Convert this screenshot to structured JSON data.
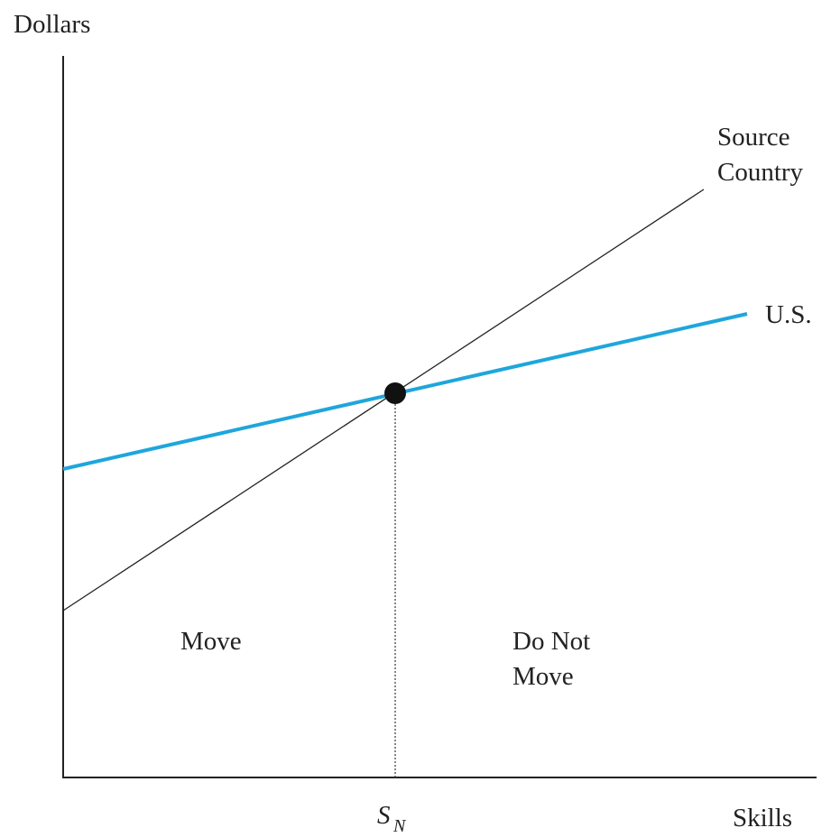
{
  "axes": {
    "y_label": "Dollars",
    "x_label": "Skills"
  },
  "curves": [
    {
      "label_lines": [
        "Source",
        "Country"
      ]
    },
    {
      "label_lines": [
        "U.S."
      ]
    }
  ],
  "regions": [
    {
      "label_lines": [
        "Move"
      ]
    },
    {
      "label_lines": [
        "Do Not",
        "Move"
      ]
    }
  ],
  "threshold": {
    "symbol": "S",
    "subscript": "N"
  }
}
